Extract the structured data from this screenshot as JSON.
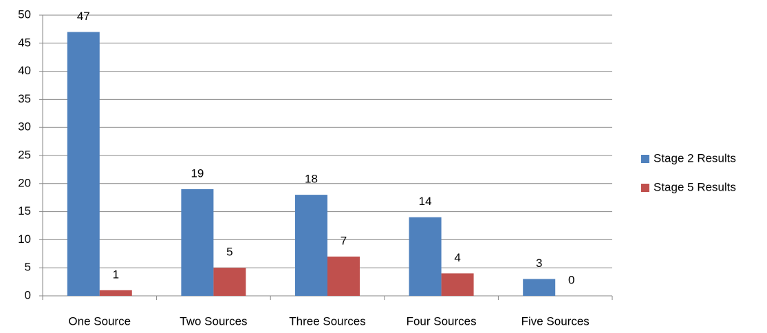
{
  "chart_data": {
    "type": "bar",
    "categories": [
      "One Source",
      "Two Sources",
      "Three Sources",
      "Four Sources",
      "Five Sources"
    ],
    "series": [
      {
        "name": "Stage 2 Results",
        "color": "#4f81bd",
        "values": [
          47,
          19,
          18,
          14,
          3
        ]
      },
      {
        "name": "Stage 5 Results",
        "color": "#c0504d",
        "values": [
          1,
          5,
          7,
          4,
          0
        ]
      }
    ],
    "ylim": [
      0,
      50
    ],
    "yticks": [
      0,
      5,
      10,
      15,
      20,
      25,
      30,
      35,
      40,
      45,
      50
    ],
    "grid": true,
    "legend": "right"
  }
}
